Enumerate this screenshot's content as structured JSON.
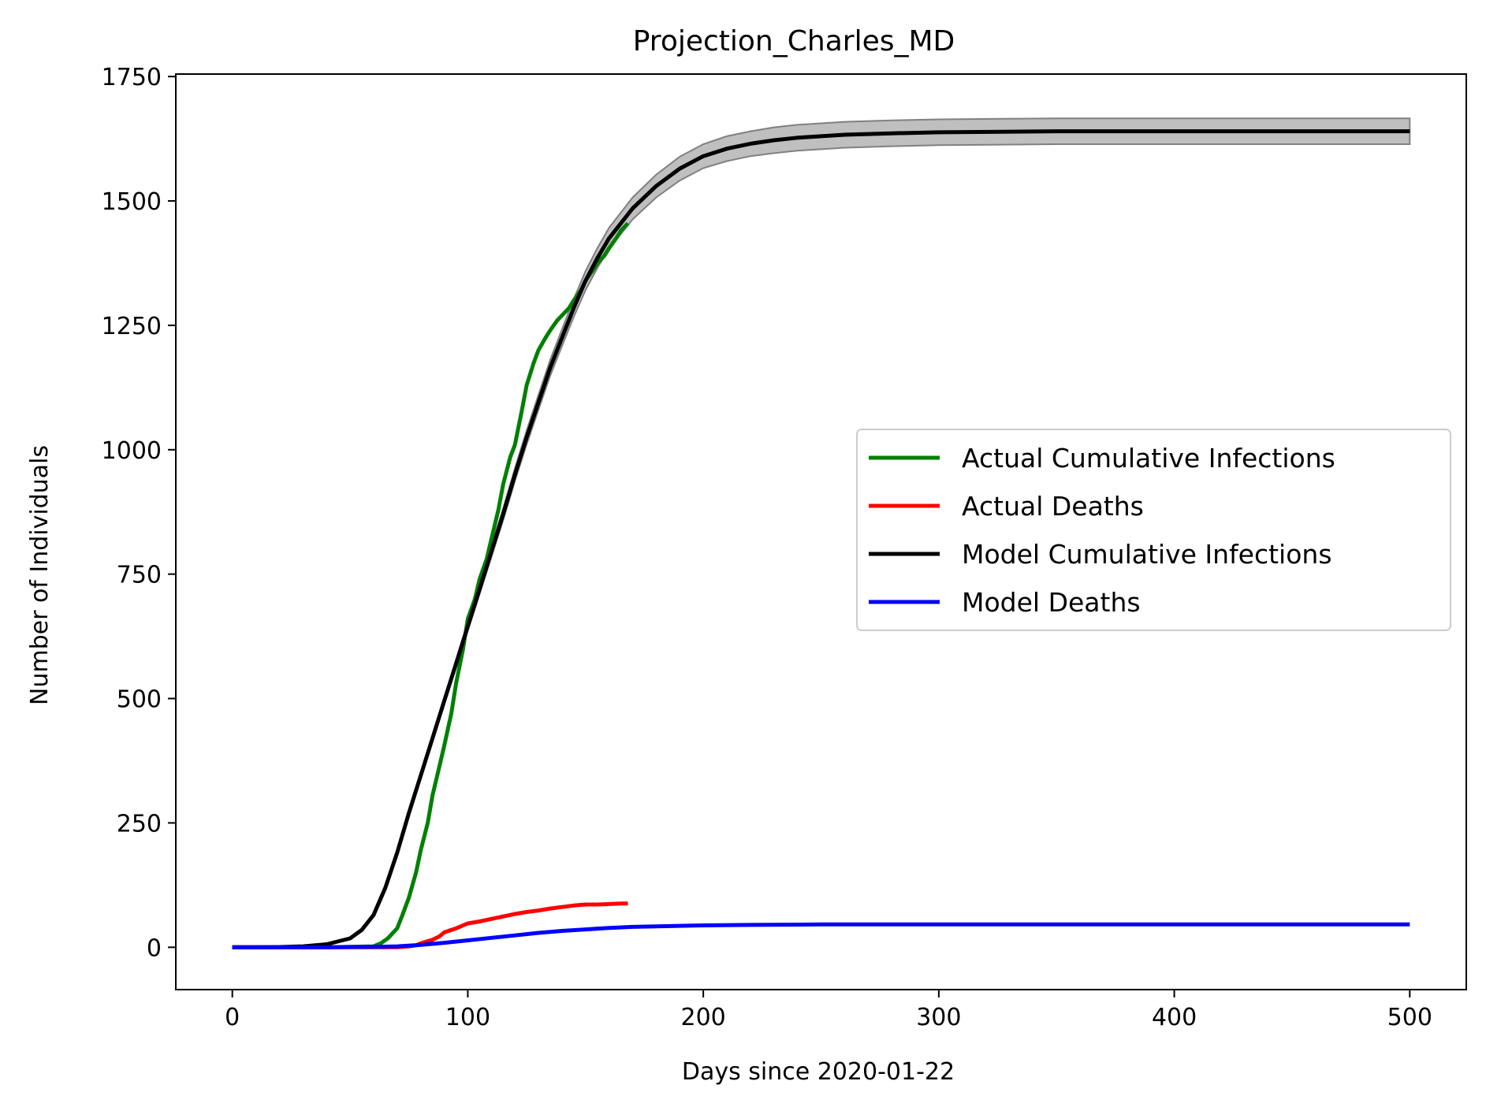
{
  "chart_data": {
    "type": "line",
    "title": "Projection_Charles_MD",
    "xlabel": "Days since 2020-01-22",
    "ylabel": "Number of Individuals",
    "xlim": [
      -24,
      524
    ],
    "ylim": [
      -85,
      1755
    ],
    "xticks": [
      0,
      100,
      200,
      300,
      400,
      500
    ],
    "yticks": [
      0,
      250,
      500,
      750,
      1000,
      1250,
      1500,
      1750
    ],
    "grid": false,
    "legend_position": "center-right",
    "series": [
      {
        "name": "Actual Cumulative Infections",
        "color": "#008000",
        "x": [
          0,
          20,
          40,
          60,
          63,
          66,
          70,
          72,
          75,
          78,
          80,
          83,
          85,
          88,
          90,
          93,
          95,
          98,
          100,
          103,
          105,
          108,
          110,
          113,
          115,
          118,
          120,
          123,
          125,
          128,
          130,
          133,
          135,
          138,
          140,
          143,
          145,
          148,
          150,
          153,
          155,
          158,
          160,
          163,
          165,
          168
        ],
        "y": [
          0,
          0,
          0,
          2,
          8,
          18,
          38,
          62,
          100,
          150,
          195,
          250,
          305,
          365,
          405,
          470,
          530,
          600,
          660,
          700,
          740,
          780,
          820,
          880,
          930,
          985,
          1010,
          1080,
          1130,
          1175,
          1200,
          1225,
          1240,
          1260,
          1270,
          1285,
          1300,
          1320,
          1340,
          1360,
          1375,
          1390,
          1405,
          1425,
          1440,
          1455
        ]
      },
      {
        "name": "Actual Deaths",
        "color": "#ff0000",
        "x": [
          0,
          50,
          70,
          75,
          78,
          80,
          85,
          88,
          90,
          95,
          98,
          100,
          105,
          110,
          115,
          120,
          125,
          130,
          135,
          140,
          145,
          150,
          155,
          160,
          165,
          168
        ],
        "y": [
          0,
          0,
          0,
          2,
          4,
          8,
          15,
          22,
          30,
          38,
          44,
          48,
          52,
          57,
          62,
          67,
          71,
          74,
          78,
          81,
          84,
          86,
          86,
          87,
          88,
          88
        ]
      },
      {
        "name": "Model Cumulative Infections",
        "color": "#000000",
        "x": [
          0,
          10,
          20,
          30,
          40,
          50,
          55,
          60,
          65,
          70,
          75,
          80,
          85,
          90,
          95,
          100,
          105,
          110,
          115,
          120,
          125,
          130,
          135,
          140,
          145,
          150,
          155,
          160,
          170,
          180,
          190,
          200,
          210,
          220,
          230,
          240,
          260,
          280,
          300,
          350,
          400,
          450,
          500
        ],
        "y": [
          0,
          0,
          0.5,
          2,
          6,
          18,
          35,
          65,
          120,
          190,
          270,
          345,
          420,
          495,
          570,
          645,
          720,
          795,
          870,
          950,
          1025,
          1095,
          1165,
          1225,
          1285,
          1340,
          1385,
          1425,
          1485,
          1530,
          1565,
          1590,
          1605,
          1615,
          1622,
          1627,
          1633,
          1636,
          1638,
          1640,
          1640,
          1640,
          1640
        ]
      },
      {
        "name": "Model Deaths",
        "color": "#0000ff",
        "x": [
          0,
          40,
          60,
          70,
          80,
          90,
          100,
          110,
          120,
          130,
          140,
          150,
          160,
          170,
          180,
          200,
          220,
          250,
          300,
          400,
          500
        ],
        "y": [
          0,
          0,
          1,
          2,
          5,
          9,
          14,
          19,
          24,
          29,
          33,
          36,
          39,
          41,
          42,
          44,
          45,
          46,
          46,
          46,
          46
        ]
      }
    ],
    "confidence_band": {
      "color": "#808080",
      "x": [
        0,
        10,
        20,
        30,
        40,
        50,
        55,
        60,
        65,
        70,
        75,
        80,
        85,
        90,
        95,
        100,
        105,
        110,
        115,
        120,
        125,
        130,
        135,
        140,
        145,
        150,
        155,
        160,
        170,
        180,
        190,
        200,
        210,
        220,
        230,
        240,
        260,
        280,
        300,
        350,
        400,
        450,
        500
      ],
      "upper": [
        0,
        0,
        0.5,
        2,
        6,
        18,
        35,
        66,
        122,
        193,
        274,
        350,
        426,
        502,
        578,
        654,
        730,
        806,
        882,
        963,
        1039,
        1110,
        1181,
        1242,
        1303,
        1359,
        1405,
        1446,
        1507,
        1553,
        1589,
        1614,
        1630,
        1640,
        1648,
        1653,
        1659,
        1662,
        1664,
        1666,
        1666,
        1666,
        1666
      ],
      "lower": [
        0,
        0,
        0.5,
        2,
        6,
        18,
        35,
        64,
        118,
        187,
        266,
        340,
        414,
        488,
        562,
        636,
        710,
        784,
        858,
        937,
        1011,
        1080,
        1149,
        1208,
        1267,
        1321,
        1365,
        1404,
        1463,
        1507,
        1541,
        1566,
        1580,
        1590,
        1596,
        1601,
        1607,
        1610,
        1612,
        1614,
        1614,
        1614,
        1614
      ]
    }
  }
}
